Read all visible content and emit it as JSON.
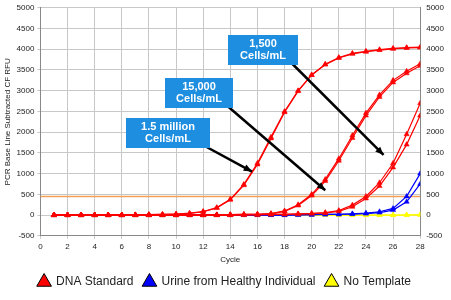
{
  "chart_data": {
    "type": "line",
    "x_label": "Cycle",
    "y_label": "PCR Base Line Subtracted CF RFU",
    "x": [
      1,
      2,
      3,
      4,
      5,
      6,
      7,
      8,
      9,
      10,
      11,
      12,
      13,
      14,
      15,
      16,
      17,
      18,
      19,
      20,
      21,
      22,
      23,
      24,
      25,
      26,
      27,
      28
    ],
    "xlim": [
      0,
      28
    ],
    "xticks": [
      0,
      2,
      4,
      6,
      8,
      10,
      12,
      14,
      16,
      18,
      20,
      22,
      24,
      26,
      28
    ],
    "ylim": [
      -500,
      5000
    ],
    "yticks": [
      -500,
      0,
      500,
      1000,
      1500,
      2000,
      2500,
      3000,
      3500,
      4000,
      4500,
      5000
    ],
    "y2lim": [
      -500,
      5000
    ],
    "y2ticks": [
      -500,
      0,
      500,
      1000,
      1500,
      2000,
      2500,
      3000,
      3500,
      4000,
      4500,
      5000
    ],
    "threshold": 450,
    "grid": true,
    "legend": "bottom",
    "marker": "triangle",
    "series": [
      {
        "name": "DNA Standard",
        "color": "#ff0000",
        "values": [
          [
            0,
            0,
            0,
            0,
            0,
            0,
            5,
            10,
            15,
            25,
            40,
            80,
            170,
            370,
            720,
            1220,
            1850,
            2480,
            2990,
            3380,
            3640,
            3800,
            3900,
            3950,
            3990,
            4020,
            4040,
            4050
          ],
          [
            0,
            0,
            0,
            0,
            0,
            0,
            5,
            10,
            15,
            25,
            45,
            85,
            180,
            380,
            740,
            1250,
            1880,
            2500,
            3000,
            3380,
            3630,
            3790,
            3890,
            3940,
            3980,
            4010,
            4030,
            4040
          ],
          [
            0,
            0,
            0,
            0,
            0,
            0,
            0,
            0,
            0,
            0,
            0,
            0,
            5,
            10,
            15,
            20,
            35,
            100,
            250,
            500,
            860,
            1360,
            1920,
            2460,
            2900,
            3250,
            3470,
            3650
          ],
          [
            0,
            0,
            0,
            0,
            0,
            0,
            0,
            0,
            0,
            0,
            0,
            0,
            5,
            10,
            15,
            20,
            30,
            90,
            230,
            470,
            820,
            1310,
            1860,
            2400,
            2850,
            3200,
            3420,
            3600
          ],
          [
            0,
            0,
            0,
            0,
            0,
            0,
            0,
            0,
            0,
            0,
            0,
            0,
            0,
            0,
            5,
            10,
            15,
            20,
            30,
            40,
            60,
            110,
            240,
            450,
            780,
            1250,
            1950,
            2700
          ],
          [
            0,
            0,
            0,
            0,
            0,
            0,
            0,
            0,
            0,
            0,
            0,
            0,
            0,
            0,
            5,
            10,
            15,
            20,
            25,
            35,
            50,
            90,
            200,
            400,
            700,
            1150,
            1700,
            2400
          ]
        ]
      },
      {
        "name": "Urine from Healthy Individual",
        "color": "#0000ff",
        "values": [
          [
            0,
            0,
            0,
            0,
            0,
            0,
            0,
            0,
            0,
            0,
            0,
            0,
            0,
            0,
            0,
            0,
            0,
            0,
            5,
            10,
            15,
            20,
            30,
            45,
            80,
            160,
            450,
            1000
          ],
          [
            0,
            0,
            0,
            0,
            0,
            0,
            0,
            0,
            0,
            0,
            0,
            0,
            0,
            0,
            0,
            0,
            0,
            0,
            5,
            10,
            15,
            20,
            25,
            35,
            60,
            120,
            320,
            750
          ]
        ]
      },
      {
        "name": "No Template",
        "color": "#ffff00",
        "values": [
          [
            0,
            0,
            0,
            0,
            0,
            0,
            0,
            0,
            0,
            0,
            0,
            0,
            0,
            0,
            0,
            0,
            0,
            0,
            0,
            0,
            0,
            0,
            0,
            0,
            0,
            0,
            5,
            10
          ],
          [
            0,
            0,
            0,
            0,
            0,
            0,
            0,
            0,
            0,
            0,
            0,
            0,
            0,
            0,
            0,
            0,
            0,
            0,
            0,
            0,
            0,
            0,
            0,
            0,
            0,
            0,
            0,
            5
          ]
        ]
      }
    ],
    "annotations": [
      "1,500 Cells/mL",
      "15,000 Cells/mL",
      "1.5 million Cells/mL"
    ]
  }
}
